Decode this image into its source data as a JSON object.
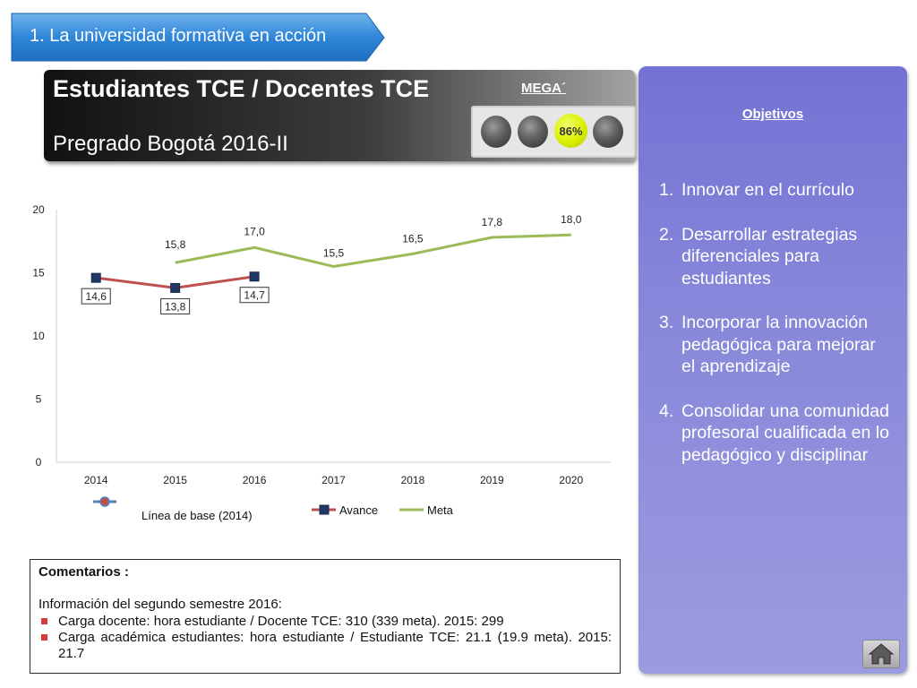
{
  "banner": {
    "label": "1. La universidad formativa en acción"
  },
  "header": {
    "title": "Estudiantes TCE / Docentes TCE",
    "subtitle": "Pregrado Bogotá 2016-II",
    "mega_label": "MEGA´",
    "indicator_value": "86%",
    "indicator_color": "#d9f000",
    "indicator_lights": [
      "gray",
      "gray",
      "yellow",
      "gray"
    ]
  },
  "objectives": {
    "title": "Objetivos",
    "items": [
      {
        "num": "1.",
        "text": "Innovar en el currículo"
      },
      {
        "num": "2.",
        "text": "Desarrollar estrategias diferenciales para estudiantes"
      },
      {
        "num": "3.",
        "text": "Incorporar la innovación pedagógica para mejorar el aprendizaje"
      },
      {
        "num": "4.",
        "text": "Consolidar una comunidad profesoral cualificada en lo pedagógico y disciplinar"
      }
    ],
    "background_color": "#8080d8"
  },
  "chart_data": {
    "type": "line",
    "title": "",
    "xlabel": "",
    "ylabel": "",
    "categories": [
      "2014",
      "2015",
      "2016",
      "2017",
      "2018",
      "2019",
      "2020"
    ],
    "ylim": [
      0,
      20
    ],
    "yticks": [
      "0",
      "5",
      "10",
      "15",
      "20"
    ],
    "grid": false,
    "legend_position": "bottom",
    "series": [
      {
        "name": "Avance",
        "values": [
          14.6,
          13.8,
          14.7,
          null,
          null,
          null,
          null
        ],
        "labels": [
          "14,6",
          "13,8",
          "14,7",
          "",
          "",
          "",
          ""
        ],
        "color": "#c0504d",
        "marker_color": "#1f3864"
      },
      {
        "name": "Meta",
        "values": [
          null,
          15.8,
          17.0,
          15.5,
          16.5,
          17.8,
          18.0
        ],
        "labels": [
          "",
          "15,8",
          "17,0",
          "15,5",
          "16,5",
          "17,8",
          "18,0"
        ],
        "color": "#9bbb59"
      }
    ],
    "legend": [
      {
        "name": "Línea de base (2014)",
        "color": "#4f81bd",
        "marker_color": "#c0504d"
      },
      {
        "name": "Avance",
        "color": "#c0504d",
        "marker_color": "#1f3864"
      },
      {
        "name": "Meta",
        "color": "#9bbb59"
      }
    ]
  },
  "comments": {
    "title": "Comentarios :",
    "intro": "Información del segundo semestre 2016:",
    "bullet_color": "#d43a3a",
    "items": [
      "Carga docente: hora estudiante / Docente TCE: 310 (339 meta). 2015: 299",
      "Carga académica estudiantes: hora estudiante / Estudiante TCE: 21.1 (19.9 meta). 2015: 21.7"
    ]
  },
  "home_icon": "home-icon"
}
